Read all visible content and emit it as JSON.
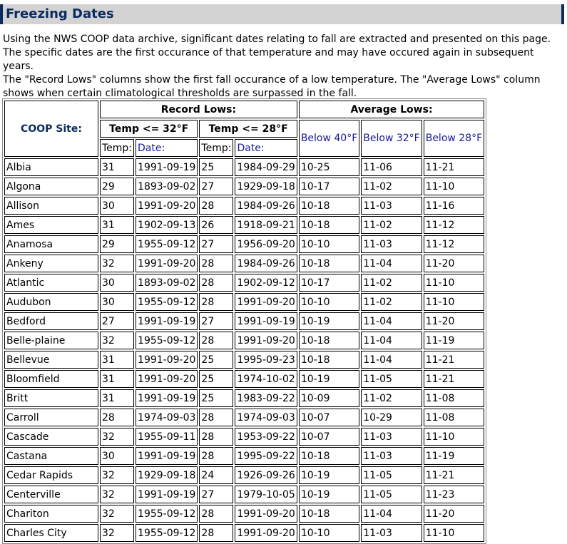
{
  "page": {
    "title": "Freezing Dates",
    "intro_line1": "Using the NWS COOP data archive, significant dates relating to fall are extracted and presented on this page. The specific dates are the first occurance of that temperature and may have occured again in subsequent years.",
    "intro_line2": "The \"Record Lows\" columns show the first fall occurance of a low temperature. The \"Average Lows\" column shows when certain climatological thresholds are surpassed in the fall."
  },
  "table": {
    "coop_site_header": "COOP Site:",
    "record_lows_header": "Record Lows:",
    "average_lows_header": "Average Lows:",
    "temp32_header": "Temp <= 32°F",
    "temp28_header": "Temp <= 28°F",
    "temp_label": "Temp:",
    "date_label": "Date:",
    "below40": "Below 40°F",
    "below32": "Below 32°F",
    "below28": "Below 28°F",
    "rows": [
      {
        "site": "Albia",
        "t32": "31",
        "d32": "1991-09-19",
        "t28": "25",
        "d28": "1984-09-29",
        "b40": "10-25",
        "b32": "11-06",
        "b28": "11-21"
      },
      {
        "site": "Algona",
        "t32": "29",
        "d32": "1893-09-02",
        "t28": "27",
        "d28": "1929-09-18",
        "b40": "10-17",
        "b32": "11-02",
        "b28": "11-10"
      },
      {
        "site": "Allison",
        "t32": "30",
        "d32": "1991-09-20",
        "t28": "28",
        "d28": "1984-09-26",
        "b40": "10-18",
        "b32": "11-03",
        "b28": "11-16"
      },
      {
        "site": "Ames",
        "t32": "31",
        "d32": "1902-09-13",
        "t28": "26",
        "d28": "1918-09-21",
        "b40": "10-18",
        "b32": "11-02",
        "b28": "11-12"
      },
      {
        "site": "Anamosa",
        "t32": "29",
        "d32": "1955-09-12",
        "t28": "27",
        "d28": "1956-09-20",
        "b40": "10-10",
        "b32": "11-03",
        "b28": "11-12"
      },
      {
        "site": "Ankeny",
        "t32": "32",
        "d32": "1991-09-20",
        "t28": "28",
        "d28": "1984-09-26",
        "b40": "10-18",
        "b32": "11-04",
        "b28": "11-20"
      },
      {
        "site": "Atlantic",
        "t32": "30",
        "d32": "1893-09-02",
        "t28": "28",
        "d28": "1902-09-12",
        "b40": "10-17",
        "b32": "11-02",
        "b28": "11-10"
      },
      {
        "site": "Audubon",
        "t32": "30",
        "d32": "1955-09-12",
        "t28": "28",
        "d28": "1991-09-20",
        "b40": "10-10",
        "b32": "11-02",
        "b28": "11-10"
      },
      {
        "site": "Bedford",
        "t32": "27",
        "d32": "1991-09-19",
        "t28": "27",
        "d28": "1991-09-19",
        "b40": "10-19",
        "b32": "11-04",
        "b28": "11-20"
      },
      {
        "site": "Belle-plaine",
        "t32": "32",
        "d32": "1955-09-12",
        "t28": "28",
        "d28": "1991-09-20",
        "b40": "10-18",
        "b32": "11-04",
        "b28": "11-19"
      },
      {
        "site": "Bellevue",
        "t32": "31",
        "d32": "1991-09-20",
        "t28": "25",
        "d28": "1995-09-23",
        "b40": "10-18",
        "b32": "11-04",
        "b28": "11-21"
      },
      {
        "site": "Bloomfield",
        "t32": "31",
        "d32": "1991-09-20",
        "t28": "25",
        "d28": "1974-10-02",
        "b40": "10-19",
        "b32": "11-05",
        "b28": "11-21"
      },
      {
        "site": "Britt",
        "t32": "31",
        "d32": "1991-09-19",
        "t28": "25",
        "d28": "1983-09-22",
        "b40": "10-09",
        "b32": "11-02",
        "b28": "11-08"
      },
      {
        "site": "Carroll",
        "t32": "28",
        "d32": "1974-09-03",
        "t28": "28",
        "d28": "1974-09-03",
        "b40": "10-07",
        "b32": "10-29",
        "b28": "11-08"
      },
      {
        "site": "Cascade",
        "t32": "32",
        "d32": "1955-09-11",
        "t28": "28",
        "d28": "1953-09-22",
        "b40": "10-07",
        "b32": "11-03",
        "b28": "11-10"
      },
      {
        "site": "Castana",
        "t32": "30",
        "d32": "1991-09-19",
        "t28": "28",
        "d28": "1995-09-22",
        "b40": "10-18",
        "b32": "11-03",
        "b28": "11-19"
      },
      {
        "site": "Cedar Rapids",
        "t32": "32",
        "d32": "1929-09-18",
        "t28": "24",
        "d28": "1926-09-26",
        "b40": "10-19",
        "b32": "11-05",
        "b28": "11-21"
      },
      {
        "site": "Centerville",
        "t32": "32",
        "d32": "1991-09-19",
        "t28": "27",
        "d28": "1979-10-05",
        "b40": "10-19",
        "b32": "11-05",
        "b28": "11-23"
      },
      {
        "site": "Chariton",
        "t32": "32",
        "d32": "1955-09-12",
        "t28": "28",
        "d28": "1991-09-20",
        "b40": "10-18",
        "b32": "11-04",
        "b28": "11-20"
      },
      {
        "site": "Charles City",
        "t32": "32",
        "d32": "1955-09-12",
        "t28": "28",
        "d28": "1991-09-20",
        "b40": "10-10",
        "b32": "11-03",
        "b28": "11-10"
      }
    ]
  }
}
